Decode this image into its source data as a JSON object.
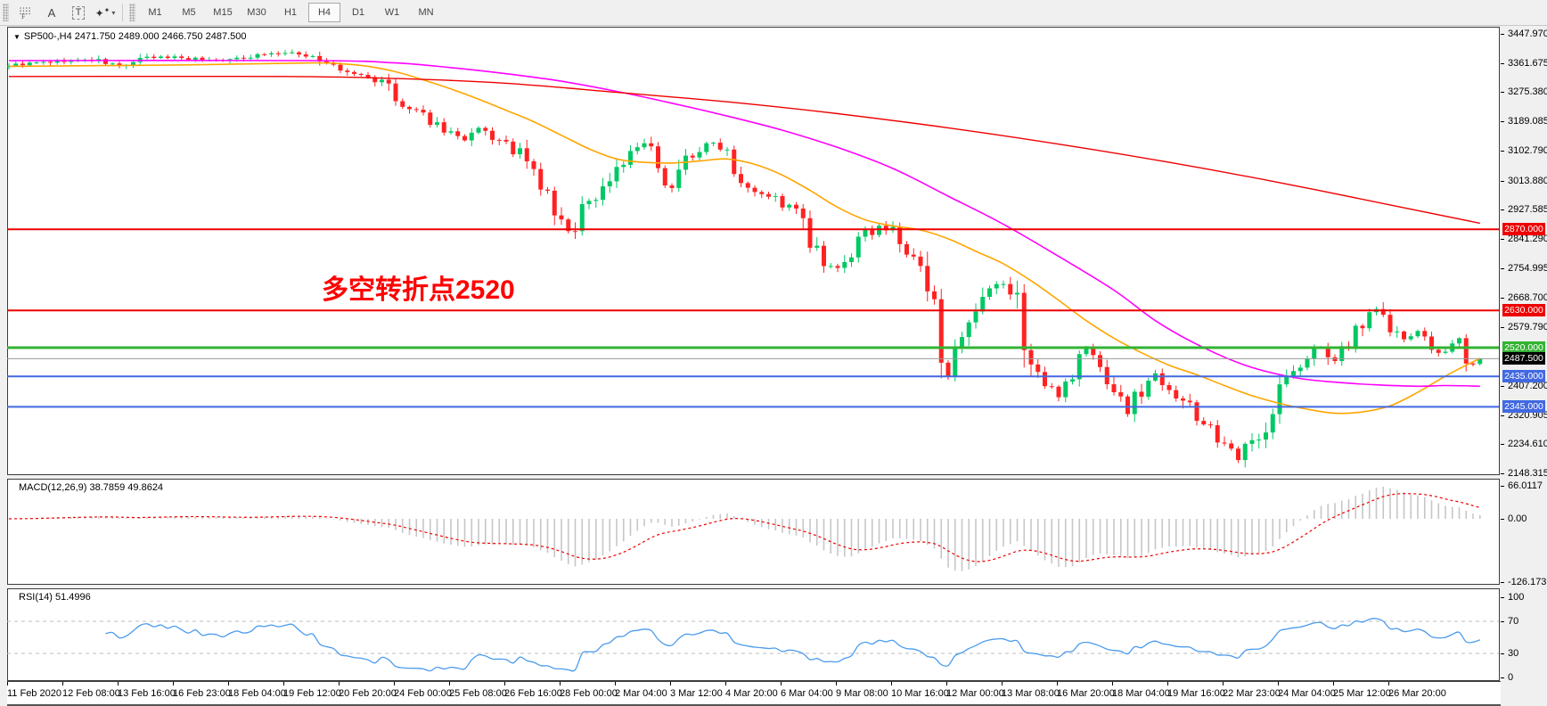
{
  "toolbar": {
    "tools": [
      {
        "name": "grid-f-icon",
        "glyph": "gridF"
      },
      {
        "name": "text-annotation-icon",
        "glyph": "A"
      },
      {
        "name": "textbox-tool-icon",
        "glyph": "T"
      },
      {
        "name": "style-brush-icon",
        "glyph": "sparkle"
      }
    ],
    "timeframes": [
      "M1",
      "M5",
      "M15",
      "M30",
      "H1",
      "H4",
      "D1",
      "W1",
      "MN"
    ],
    "active_timeframe": "H4"
  },
  "chart": {
    "title": "SP500-,H4 2471.750 2489.000 2466.750 2487.500",
    "annotation": "多空转折点2520",
    "annotation_color": "#ff0000"
  },
  "price_axis": {
    "labels": [
      "3447.970",
      "3361.675",
      "3275.380",
      "3189.085",
      "3102.790",
      "3013.880",
      "2927.585",
      "2841.290",
      "2754.995",
      "2668.700",
      "2579.790",
      "2407.200",
      "2320.905",
      "2234.610",
      "2148.315"
    ]
  },
  "time_axis": {
    "labels": [
      "11 Feb 2020",
      "12 Feb 08:00",
      "13 Feb 16:00",
      "16 Feb 23:00",
      "18 Feb 04:00",
      "19 Feb 12:00",
      "20 Feb 20:00",
      "24 Feb 00:00",
      "25 Feb 08:00",
      "26 Feb 16:00",
      "28 Feb 00:00",
      "2 Mar 04:00",
      "3 Mar 12:00",
      "4 Mar 20:00",
      "6 Mar 04:00",
      "9 Mar 08:00",
      "10 Mar 16:00",
      "12 Mar 00:00",
      "13 Mar 08:00",
      "16 Mar 20:00",
      "18 Mar 04:00",
      "19 Mar 16:00",
      "22 Mar 23:00",
      "24 Mar 04:00",
      "25 Mar 12:00",
      "26 Mar 20:00"
    ]
  },
  "levels": [
    {
      "label": "2870.000",
      "price": 2870,
      "color": "#ee0000",
      "thickness": 2
    },
    {
      "label": "2630.000",
      "price": 2630,
      "color": "#ee0000",
      "thickness": 2
    },
    {
      "label": "2520.000",
      "price": 2520,
      "color": "#33b333",
      "thickness": 3
    },
    {
      "label": "2435.000",
      "price": 2435,
      "color": "#4169e1",
      "thickness": 2
    },
    {
      "label": "2345.000",
      "price": 2345,
      "color": "#4169e1",
      "thickness": 2
    }
  ],
  "current_price": {
    "label": "2487.500",
    "value": 2487.5,
    "line_color": "#999999",
    "badge_bg": "#000000"
  },
  "current_bar": {
    "open": 2471.75,
    "high": 2489.0,
    "low": 2466.75,
    "close": 2487.5
  },
  "indicators": {
    "macd": {
      "label": "MACD(12,26,9) 38.7859 49.8624",
      "params": [
        12,
        26,
        9
      ],
      "main_value": 38.7859,
      "signal_value": 49.8624,
      "axis_labels": [
        "66.0117",
        "0.00",
        "-126.173"
      ],
      "histogram_color": "#c6c6c6",
      "signal_color": "#ee0000"
    },
    "rsi": {
      "label": "RSI(14) 51.4996",
      "period": 14,
      "value": 51.4996,
      "axis_labels": [
        "100",
        "70",
        "30",
        "0"
      ],
      "level_lines": [
        70,
        30
      ],
      "line_color": "#4a9bee"
    }
  },
  "chart_data": {
    "type": "candlestick",
    "symbol": "SP500-",
    "timeframe": "H4",
    "bar_count": 214,
    "y_axis": {
      "top_price": 3447.97,
      "bottom_price": 2148.315
    },
    "up_color": "#00c864",
    "down_color": "#ff2222",
    "close_path_anchors": [
      [
        0,
        3355
      ],
      [
        4,
        3362
      ],
      [
        8,
        3368
      ],
      [
        12,
        3372
      ],
      [
        16,
        3352
      ],
      [
        20,
        3376
      ],
      [
        24,
        3380
      ],
      [
        28,
        3372
      ],
      [
        32,
        3370
      ],
      [
        36,
        3388
      ],
      [
        40,
        3391
      ],
      [
        44,
        3382
      ],
      [
        48,
        3338
      ],
      [
        52,
        3320
      ],
      [
        55,
        3295
      ],
      [
        56,
        3240
      ],
      [
        58,
        3222
      ],
      [
        60,
        3205
      ],
      [
        62,
        3180
      ],
      [
        64,
        3155
      ],
      [
        66,
        3128
      ],
      [
        68,
        3165
      ],
      [
        70,
        3142
      ],
      [
        72,
        3116
      ],
      [
        74,
        3090
      ],
      [
        76,
        3030
      ],
      [
        78,
        2965
      ],
      [
        80,
        2885
      ],
      [
        81,
        2858
      ],
      [
        83,
        2940
      ],
      [
        85,
        2965
      ],
      [
        88,
        3055
      ],
      [
        90,
        3090
      ],
      [
        92,
        3122
      ],
      [
        94,
        3030
      ],
      [
        96,
        3000
      ],
      [
        98,
        3078
      ],
      [
        100,
        3105
      ],
      [
        102,
        3125
      ],
      [
        104,
        3108
      ],
      [
        106,
        3025
      ],
      [
        108,
        2990
      ],
      [
        110,
        2972
      ],
      [
        112,
        2945
      ],
      [
        114,
        2920
      ],
      [
        116,
        2825
      ],
      [
        118,
        2760
      ],
      [
        120,
        2748
      ],
      [
        122,
        2800
      ],
      [
        124,
        2852
      ],
      [
        126,
        2882
      ],
      [
        128,
        2860
      ],
      [
        130,
        2800
      ],
      [
        132,
        2741
      ],
      [
        134,
        2620
      ],
      [
        136,
        2460
      ],
      [
        138,
        2525
      ],
      [
        140,
        2602
      ],
      [
        142,
        2680
      ],
      [
        144,
        2711
      ],
      [
        146,
        2648
      ],
      [
        148,
        2482
      ],
      [
        150,
        2405
      ],
      [
        152,
        2386
      ],
      [
        154,
        2452
      ],
      [
        156,
        2520
      ],
      [
        158,
        2455
      ],
      [
        160,
        2402
      ],
      [
        162,
        2325
      ],
      [
        164,
        2398
      ],
      [
        166,
        2442
      ],
      [
        168,
        2410
      ],
      [
        170,
        2362
      ],
      [
        172,
        2305
      ],
      [
        174,
        2292
      ],
      [
        176,
        2222
      ],
      [
        178,
        2188
      ],
      [
        180,
        2240
      ],
      [
        182,
        2302
      ],
      [
        184,
        2402
      ],
      [
        186,
        2447
      ],
      [
        188,
        2482
      ],
      [
        190,
        2525
      ],
      [
        192,
        2476
      ],
      [
        194,
        2532
      ],
      [
        196,
        2602
      ],
      [
        198,
        2640
      ],
      [
        200,
        2575
      ],
      [
        202,
        2545
      ],
      [
        204,
        2562
      ],
      [
        206,
        2520
      ],
      [
        208,
        2502
      ],
      [
        210,
        2538
      ],
      [
        212,
        2470
      ],
      [
        213,
        2487.5
      ]
    ],
    "moving_averages": [
      {
        "name": "ma-fast",
        "color": "#ffa500",
        "anchors": [
          [
            0,
            3352
          ],
          [
            24,
            3356
          ],
          [
            44,
            3362
          ],
          [
            48,
            3360
          ],
          [
            52,
            3352
          ],
          [
            56,
            3336
          ],
          [
            60,
            3312
          ],
          [
            64,
            3285
          ],
          [
            68,
            3255
          ],
          [
            72,
            3222
          ],
          [
            76,
            3188
          ],
          [
            80,
            3148
          ],
          [
            84,
            3108
          ],
          [
            88,
            3078
          ],
          [
            92,
            3068
          ],
          [
            96,
            3066
          ],
          [
            100,
            3072
          ],
          [
            104,
            3078
          ],
          [
            108,
            3062
          ],
          [
            112,
            3030
          ],
          [
            116,
            2985
          ],
          [
            120,
            2935
          ],
          [
            124,
            2898
          ],
          [
            128,
            2880
          ],
          [
            132,
            2868
          ],
          [
            136,
            2842
          ],
          [
            140,
            2805
          ],
          [
            144,
            2768
          ],
          [
            148,
            2718
          ],
          [
            152,
            2660
          ],
          [
            156,
            2600
          ],
          [
            160,
            2548
          ],
          [
            164,
            2505
          ],
          [
            168,
            2468
          ],
          [
            172,
            2440
          ],
          [
            176,
            2408
          ],
          [
            180,
            2378
          ],
          [
            184,
            2355
          ],
          [
            188,
            2338
          ],
          [
            192,
            2326
          ],
          [
            196,
            2330
          ],
          [
            200,
            2348
          ],
          [
            204,
            2388
          ],
          [
            208,
            2436
          ],
          [
            211,
            2468
          ],
          [
            213,
            2488
          ]
        ]
      },
      {
        "name": "ma-mid",
        "color": "#ff00ff",
        "anchors": [
          [
            0,
            3369
          ],
          [
            44,
            3369
          ],
          [
            56,
            3362
          ],
          [
            64,
            3348
          ],
          [
            72,
            3330
          ],
          [
            80,
            3308
          ],
          [
            88,
            3278
          ],
          [
            96,
            3243
          ],
          [
            104,
            3205
          ],
          [
            112,
            3163
          ],
          [
            120,
            3112
          ],
          [
            128,
            3050
          ],
          [
            136,
            2968
          ],
          [
            144,
            2885
          ],
          [
            152,
            2790
          ],
          [
            160,
            2690
          ],
          [
            166,
            2600
          ],
          [
            172,
            2530
          ],
          [
            179,
            2468
          ],
          [
            186,
            2432
          ],
          [
            192,
            2418
          ],
          [
            198,
            2410
          ],
          [
            204,
            2406
          ],
          [
            208,
            2408
          ],
          [
            213,
            2406
          ]
        ]
      },
      {
        "name": "ma-slow",
        "color": "#ee0000",
        "anchors": [
          [
            0,
            3322
          ],
          [
            40,
            3322
          ],
          [
            56,
            3316
          ],
          [
            72,
            3302
          ],
          [
            88,
            3275
          ],
          [
            104,
            3247
          ],
          [
            120,
            3212
          ],
          [
            136,
            3170
          ],
          [
            152,
            3122
          ],
          [
            168,
            3068
          ],
          [
            184,
            3008
          ],
          [
            200,
            2942
          ],
          [
            213,
            2888
          ]
        ]
      }
    ]
  }
}
